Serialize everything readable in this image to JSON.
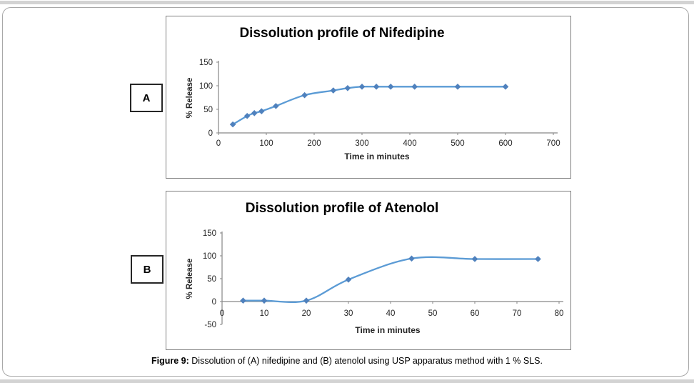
{
  "figure": {
    "panel_a_label": "A",
    "panel_b_label": "B",
    "caption_prefix": "Figure 9:",
    "caption_body": " Dissolution of (A) nifedipine and (B) atenolol using USP apparatus method with 1 % SLS."
  },
  "colors": {
    "line": "#5b9bd5",
    "marker": "#4f81bd",
    "axis": "#868686",
    "text": "#262626",
    "panel_border": "#7f7f7f",
    "outer_border": "#a8a8a8",
    "edge_strip": "#d3d3d3"
  },
  "chart_data": [
    {
      "type": "line",
      "title": "Dissolution profile of Nifedipine",
      "xlabel": "Time in minutes",
      "ylabel": "% Release",
      "x": [
        30,
        60,
        75,
        90,
        120,
        180,
        240,
        270,
        300,
        330,
        360,
        410,
        500,
        600
      ],
      "y": [
        18,
        36,
        42,
        46,
        57,
        80,
        90,
        95,
        98,
        98,
        98,
        98,
        98,
        98
      ],
      "xlim": [
        0,
        700
      ],
      "xticks": [
        0,
        100,
        200,
        300,
        400,
        500,
        600,
        700
      ],
      "ylim": [
        0,
        150
      ],
      "yticks": [
        0,
        50,
        100,
        150
      ],
      "grid": false,
      "legend": null,
      "smooth": true,
      "marker": "diamond"
    },
    {
      "type": "line",
      "title": "Dissolution profile of Atenolol",
      "xlabel": "Time in minutes",
      "ylabel": "% Release",
      "x": [
        5,
        10,
        20,
        30,
        45,
        60,
        75
      ],
      "y": [
        2,
        2,
        2,
        48,
        94,
        93,
        93
      ],
      "xlim": [
        0,
        80
      ],
      "xticks": [
        0,
        10,
        20,
        30,
        40,
        50,
        60,
        70,
        80
      ],
      "ylim": [
        -50,
        150
      ],
      "yticks": [
        -50,
        0,
        50,
        100,
        150
      ],
      "grid": false,
      "legend": null,
      "smooth": true,
      "marker": "diamond"
    }
  ]
}
